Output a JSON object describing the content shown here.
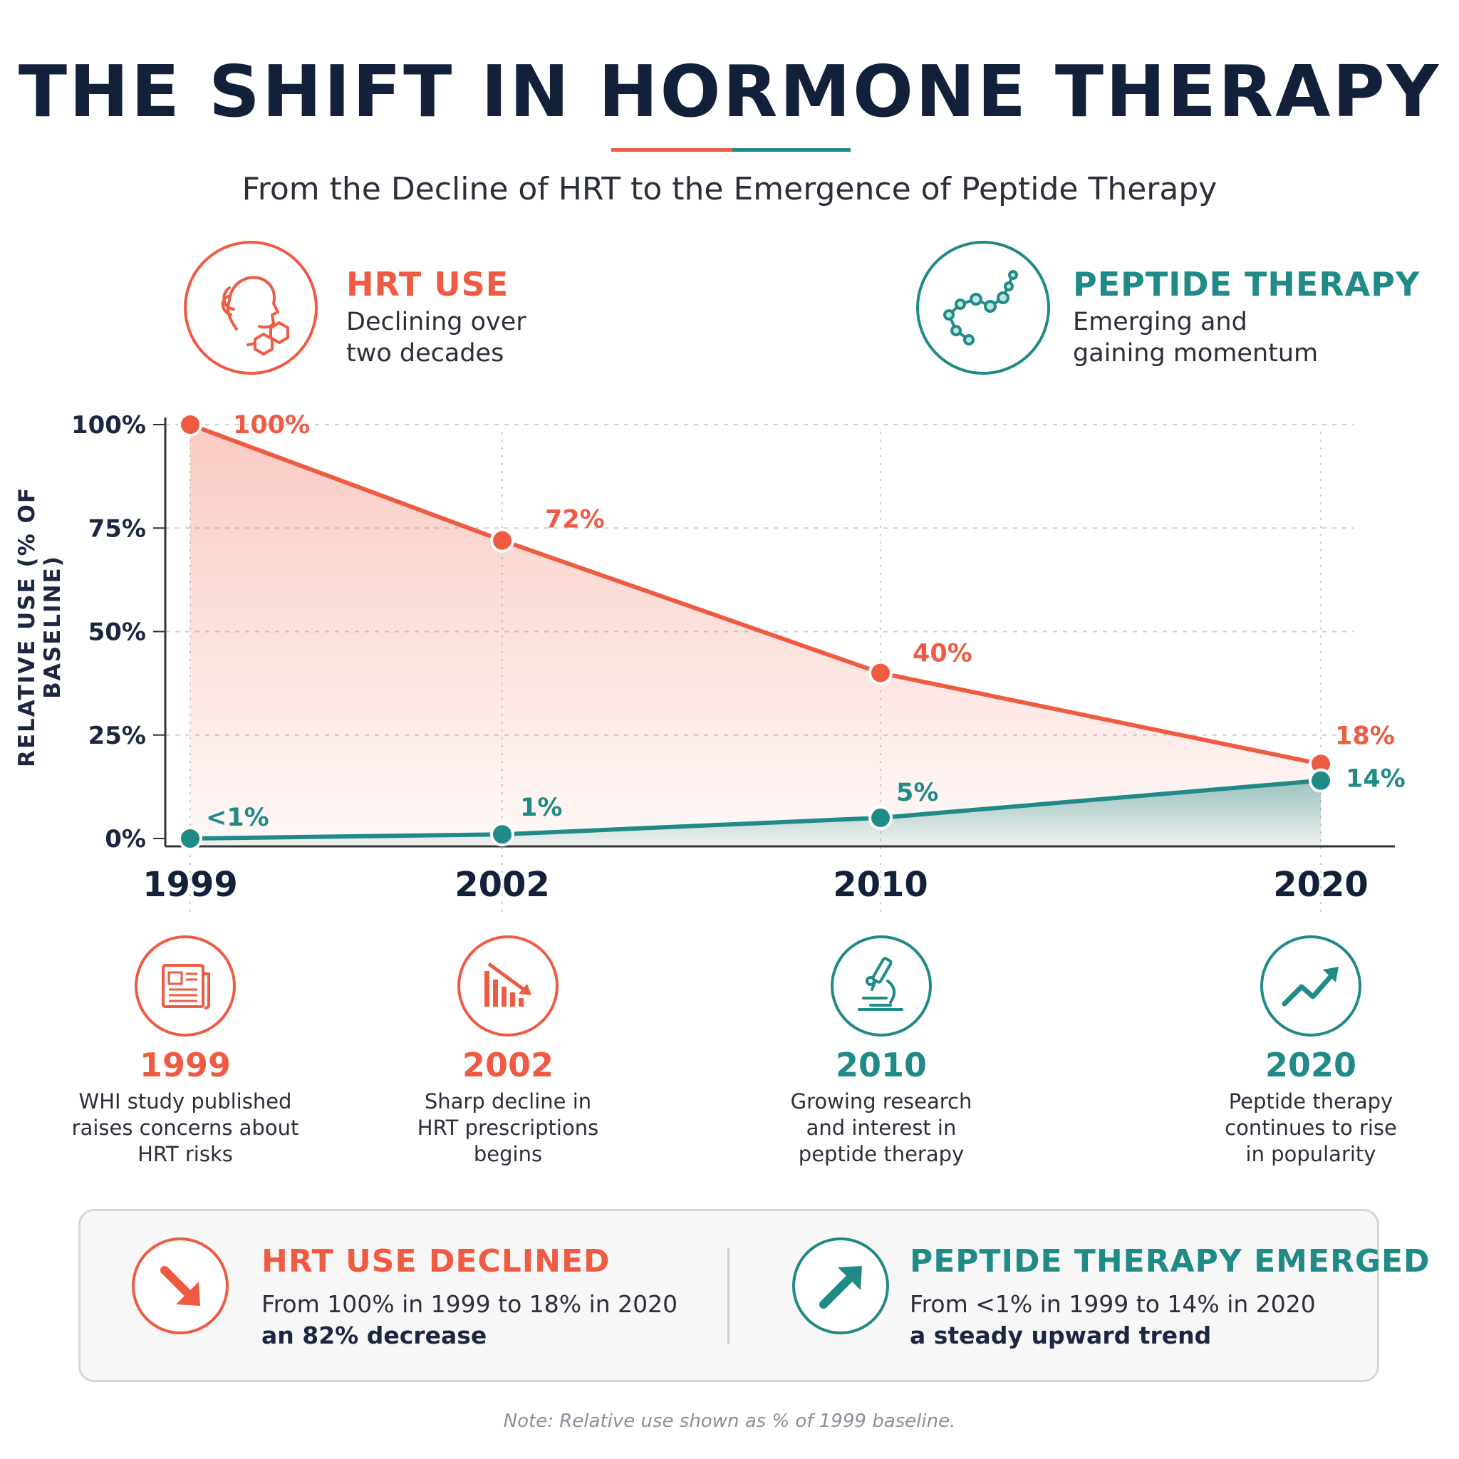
{
  "colors": {
    "hrt": "#ef5b42",
    "peptide": "#1f8a86",
    "ink": "#13203a"
  },
  "header": {
    "title": "THE SHIFT IN HORMONE THERAPY",
    "subtitle": "From the Decline of HRT to the Emergence of Peptide Therapy"
  },
  "legend": {
    "hrt": {
      "title": "HRT USE",
      "desc_line1": "Declining over",
      "desc_line2": "two decades",
      "icon": "woman-profile-molecule-icon"
    },
    "peptide": {
      "title": "PEPTIDE THERAPY",
      "desc_line1": "Emerging and",
      "desc_line2": "gaining momentum",
      "icon": "peptide-chain-icon"
    }
  },
  "chart_data": {
    "type": "line",
    "x": [
      "1999",
      "2002",
      "2010",
      "2020"
    ],
    "ylabel": "RELATIVE USE (% OF BASELINE)",
    "ylim": [
      0,
      100
    ],
    "yticks": [
      "0%",
      "25%",
      "50%",
      "75%",
      "100%"
    ],
    "grid": "horizontal dashed",
    "series": [
      {
        "name": "HRT USE",
        "values": [
          100,
          72,
          40,
          18
        ],
        "labels": [
          "100%",
          "72%",
          "40%",
          "18%"
        ],
        "color": "#ef5b42",
        "area_fill": true
      },
      {
        "name": "PEPTIDE THERAPY",
        "values": [
          0,
          1,
          5,
          14
        ],
        "labels": [
          "<1%",
          "1%",
          "5%",
          "14%"
        ],
        "color": "#1f8a86",
        "area_fill": true
      }
    ]
  },
  "milestones": [
    {
      "year": "1999",
      "line1": "WHI study published",
      "line2": "raises concerns about",
      "line3": "HRT risks",
      "icon": "newspaper-icon",
      "color": "#ef5b42"
    },
    {
      "year": "2002",
      "line1": "Sharp decline in",
      "line2": "HRT prescriptions",
      "line3": "begins",
      "icon": "declining-bars-icon",
      "color": "#ef5b42"
    },
    {
      "year": "2010",
      "line1": "Growing research",
      "line2": "and interest in",
      "line3": "peptide therapy",
      "icon": "microscope-icon",
      "color": "#1f8a86"
    },
    {
      "year": "2020",
      "line1": "Peptide therapy",
      "line2": "continues to rise",
      "line3": "in popularity",
      "icon": "trending-up-icon",
      "color": "#1f8a86"
    }
  ],
  "summary": {
    "hrt": {
      "title": "HRT USE DECLINED",
      "line1": "From 100% in 1999 to 18% in 2020",
      "line2": "an 82% decrease",
      "icon": "arrow-down-right-icon"
    },
    "peptide": {
      "title": "PEPTIDE THERAPY EMERGED",
      "line1": "From <1% in 1999 to 14% in 2020",
      "line2": "a steady upward trend",
      "icon": "arrow-up-right-icon"
    }
  },
  "note": "Note: Relative use shown as % of 1999 baseline."
}
